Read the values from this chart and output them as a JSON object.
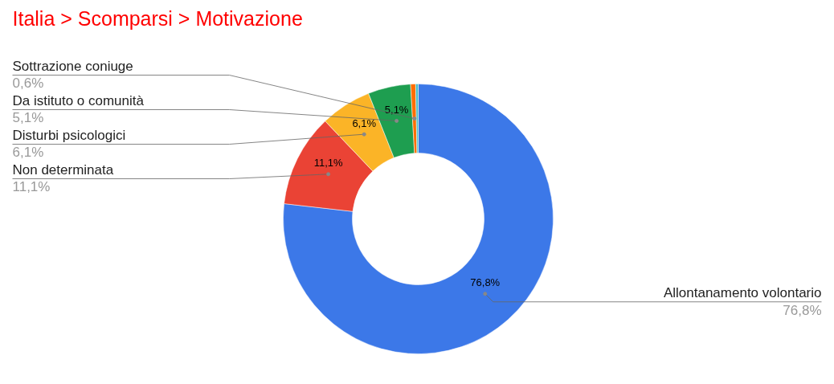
{
  "chart_data": {
    "type": "donut",
    "title": "Italia > Scomparsi > Motivazione",
    "categories": [
      "Allontanamento volontario",
      "Non determinata",
      "Disturbi psicologici",
      "Da istituto o comunità",
      "Sottrazione coniuge",
      null
    ],
    "values": [
      76.8,
      11.1,
      6.1,
      5.1,
      0.6,
      0.3
    ],
    "colors": [
      "#3c78e8",
      "#ea4335",
      "#fbb427",
      "#1e9e50",
      "#ff6d01",
      "#46bdc6"
    ],
    "value_labels": [
      "76,8%",
      "11,1%",
      "6,1%",
      "5,1%",
      "0,6%",
      null
    ]
  }
}
